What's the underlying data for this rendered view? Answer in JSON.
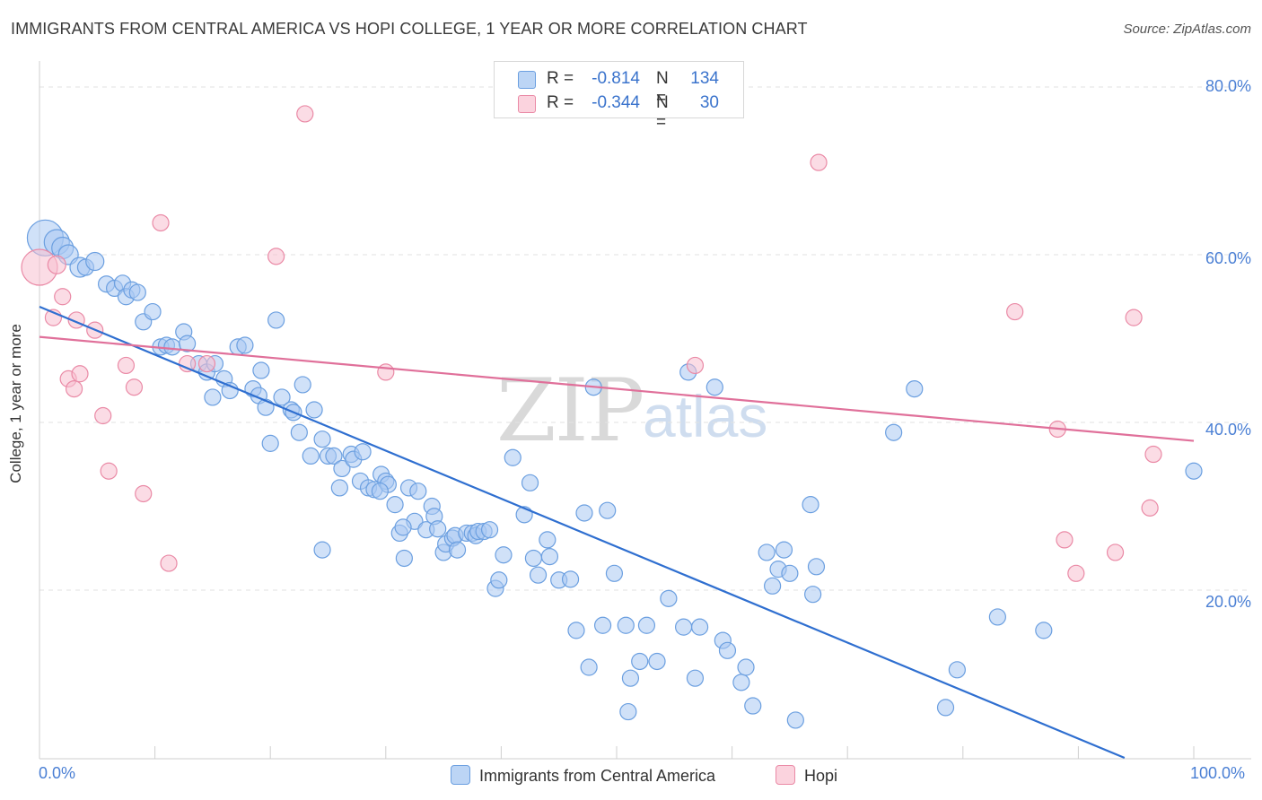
{
  "title": "IMMIGRANTS FROM CENTRAL AMERICA VS HOPI COLLEGE, 1 YEAR OR MORE CORRELATION CHART",
  "source": "Source: ZipAtlas.com",
  "watermark": {
    "zip": "ZIP",
    "atlas": "atlas"
  },
  "legend": {
    "rows": [
      {
        "r_label": "R =",
        "r_value": "-0.814",
        "n_label": "N =",
        "n_value": "134",
        "color": "#a9c8f2",
        "border": "#6b9fe0"
      },
      {
        "r_label": "R =",
        "r_value": "-0.344",
        "n_label": "N =",
        "n_value": "30",
        "color": "#f7c0cf",
        "border": "#ea8aa6"
      }
    ],
    "bottom": [
      {
        "label": "Immigrants from Central America",
        "color": "#bcd5f5",
        "border": "#6b9fe0"
      },
      {
        "label": "Hopi",
        "color": "#fbd3de",
        "border": "#ea8aa6"
      }
    ]
  },
  "chart_data": {
    "type": "scatter",
    "title": "IMMIGRANTS FROM CENTRAL AMERICA VS HOPI COLLEGE, 1 YEAR OR MORE CORRELATION CHART",
    "xlabel": "",
    "ylabel": "College, 1 year or more",
    "xlim": [
      0,
      100
    ],
    "ylim": [
      0,
      80
    ],
    "x_tick_labels": [
      "0.0%",
      "100.0%"
    ],
    "y_tick_labels": [
      "20.0%",
      "40.0%",
      "60.0%",
      "80.0%"
    ],
    "y_ticks": [
      20,
      40,
      60,
      80
    ],
    "grid": "horizontal dashed",
    "legend_position": "top-center",
    "series": [
      {
        "name": "Immigrants from Central America",
        "color": "#6b9fe0",
        "fill": "#a9c8f2",
        "trend": {
          "x": [
            0,
            94
          ],
          "y": [
            53.8,
            0
          ]
        },
        "points": [
          [
            0.5,
            62,
            20
          ],
          [
            1.5,
            61.5,
            14
          ],
          [
            2,
            60.8,
            12
          ],
          [
            2.5,
            60,
            11
          ],
          [
            3.5,
            58.5,
            11
          ],
          [
            4,
            58.5,
            9
          ],
          [
            4.8,
            59.2,
            10
          ],
          [
            5.8,
            56.5,
            9
          ],
          [
            6.5,
            56,
            9
          ],
          [
            7.2,
            56.6,
            9
          ],
          [
            7.5,
            55,
            9
          ],
          [
            8,
            55.8,
            9
          ],
          [
            8.5,
            55.5,
            9
          ],
          [
            9,
            52,
            9
          ],
          [
            9.8,
            53.2,
            9
          ],
          [
            10.5,
            49,
            9
          ],
          [
            11,
            49.2,
            9
          ],
          [
            11.5,
            49,
            9
          ],
          [
            12.5,
            50.8,
            9
          ],
          [
            12.8,
            49.4,
            9
          ],
          [
            13.8,
            47,
            9
          ],
          [
            14.5,
            46,
            9
          ],
          [
            15,
            43,
            9
          ],
          [
            15.2,
            47,
            9
          ],
          [
            16,
            45.2,
            9
          ],
          [
            16.5,
            43.8,
            9
          ],
          [
            17.2,
            49,
            9
          ],
          [
            17.8,
            49.2,
            9
          ],
          [
            18.5,
            44,
            9
          ],
          [
            19,
            43.2,
            9
          ],
          [
            19.2,
            46.2,
            9
          ],
          [
            19.6,
            41.8,
            9
          ],
          [
            20,
            37.5,
            9
          ],
          [
            20.5,
            52.2,
            9
          ],
          [
            21,
            43,
            9
          ],
          [
            21.8,
            41.5,
            9
          ],
          [
            22,
            41.2,
            9
          ],
          [
            22.5,
            38.8,
            9
          ],
          [
            22.8,
            44.5,
            9
          ],
          [
            23.5,
            36,
            9
          ],
          [
            23.8,
            41.5,
            9
          ],
          [
            24.5,
            38,
            9
          ],
          [
            25,
            36,
            9
          ],
          [
            25.5,
            36,
            9
          ],
          [
            26,
            32.2,
            9
          ],
          [
            26.2,
            34.5,
            9
          ],
          [
            27,
            36.2,
            9
          ],
          [
            27.2,
            35.6,
            9
          ],
          [
            27.8,
            33,
            9
          ],
          [
            28,
            36.5,
            9
          ],
          [
            28.5,
            32.2,
            9
          ],
          [
            29,
            32,
            9
          ],
          [
            29.6,
            33.8,
            9
          ],
          [
            30,
            33,
            9
          ],
          [
            30.2,
            32.6,
            9
          ],
          [
            30.8,
            30.2,
            9
          ],
          [
            31.2,
            26.8,
            9
          ],
          [
            31.6,
            23.8,
            9
          ],
          [
            32,
            32.2,
            9
          ],
          [
            32.5,
            28.2,
            9
          ],
          [
            32.8,
            31.8,
            9
          ],
          [
            33.5,
            27.2,
            9
          ],
          [
            34,
            30,
            9
          ],
          [
            34.2,
            28.8,
            9
          ],
          [
            34.5,
            27.3,
            9
          ],
          [
            35,
            24.5,
            9
          ],
          [
            35.2,
            25.5,
            9
          ],
          [
            35.8,
            26.2,
            9
          ],
          [
            36,
            26.5,
            9
          ],
          [
            36.2,
            24.8,
            9
          ],
          [
            37,
            26.8,
            9
          ],
          [
            37.5,
            26.8,
            9
          ],
          [
            37.8,
            26.5,
            9
          ],
          [
            38,
            27,
            9
          ],
          [
            38.5,
            27,
            9
          ],
          [
            39,
            27.2,
            9
          ],
          [
            39.5,
            20.2,
            9
          ],
          [
            39.8,
            21.2,
            9
          ],
          [
            40.2,
            24.2,
            9
          ],
          [
            41,
            35.8,
            9
          ],
          [
            42,
            29,
            9
          ],
          [
            42.5,
            32.8,
            9
          ],
          [
            42.8,
            23.8,
            9
          ],
          [
            43.2,
            21.8,
            9
          ],
          [
            44,
            26,
            9
          ],
          [
            44.2,
            24,
            9
          ],
          [
            45,
            21.2,
            9
          ],
          [
            46,
            21.3,
            9
          ],
          [
            46.5,
            15.2,
            9
          ],
          [
            47.2,
            29.2,
            9
          ],
          [
            47.6,
            10.8,
            9
          ],
          [
            48,
            44.2,
            9
          ],
          [
            48.8,
            15.8,
            9
          ],
          [
            49.2,
            29.5,
            9
          ],
          [
            49.8,
            22,
            9
          ],
          [
            50.8,
            15.8,
            9
          ],
          [
            51,
            5.5,
            9
          ],
          [
            51.2,
            9.5,
            9
          ],
          [
            52,
            11.5,
            9
          ],
          [
            52.6,
            15.8,
            9
          ],
          [
            53.5,
            11.5,
            9
          ],
          [
            54.5,
            19,
            9
          ],
          [
            55.8,
            15.6,
            9
          ],
          [
            56.2,
            46,
            9
          ],
          [
            56.8,
            9.5,
            9
          ],
          [
            57.2,
            15.6,
            9
          ],
          [
            58.5,
            44.2,
            9
          ],
          [
            59.2,
            14,
            9
          ],
          [
            59.6,
            12.8,
            9
          ],
          [
            60.8,
            9,
            9
          ],
          [
            61.2,
            10.8,
            9
          ],
          [
            61.8,
            6.2,
            9
          ],
          [
            63,
            24.5,
            9
          ],
          [
            63.5,
            20.5,
            9
          ],
          [
            64,
            22.5,
            9
          ],
          [
            64.5,
            24.8,
            9
          ],
          [
            65,
            22,
            9
          ],
          [
            65.5,
            4.5,
            9
          ],
          [
            66.8,
            30.2,
            9
          ],
          [
            67,
            19.5,
            9
          ],
          [
            67.3,
            22.8,
            9
          ],
          [
            74,
            38.8,
            9
          ],
          [
            75.8,
            44,
            9
          ],
          [
            78.5,
            6,
            9
          ],
          [
            79.5,
            10.5,
            9
          ],
          [
            83,
            16.8,
            9
          ],
          [
            87,
            15.2,
            9
          ],
          [
            100,
            34.2,
            9
          ],
          [
            24.5,
            24.8,
            9
          ],
          [
            29.5,
            31.8,
            9
          ],
          [
            31.5,
            27.5,
            9
          ]
        ]
      },
      {
        "name": "Hopi",
        "color": "#ea8aa6",
        "fill": "#f7c0cf",
        "trend": {
          "x": [
            0,
            100
          ],
          "y": [
            50.2,
            37.8
          ]
        },
        "points": [
          [
            0,
            58.5,
            20
          ],
          [
            1.2,
            52.5,
            9
          ],
          [
            1.5,
            58.8,
            10
          ],
          [
            2,
            55,
            9
          ],
          [
            2.5,
            45.2,
            9
          ],
          [
            3,
            44,
            9
          ],
          [
            3.2,
            52.2,
            9
          ],
          [
            3.5,
            45.8,
            9
          ],
          [
            4.8,
            51,
            9
          ],
          [
            5.5,
            40.8,
            9
          ],
          [
            6,
            34.2,
            9
          ],
          [
            7.5,
            46.8,
            9
          ],
          [
            8.2,
            44.2,
            9
          ],
          [
            9,
            31.5,
            9
          ],
          [
            10.5,
            63.8,
            9
          ],
          [
            11.2,
            23.2,
            9
          ],
          [
            12.8,
            47,
            9
          ],
          [
            14.5,
            47,
            9
          ],
          [
            20.5,
            59.8,
            9
          ],
          [
            23,
            76.8,
            9
          ],
          [
            30,
            46,
            9
          ],
          [
            56.8,
            46.8,
            9
          ],
          [
            67.5,
            71,
            9
          ],
          [
            84.5,
            53.2,
            9
          ],
          [
            88.2,
            39.2,
            9
          ],
          [
            88.8,
            26,
            9
          ],
          [
            89.8,
            22,
            9
          ],
          [
            93.2,
            24.5,
            9
          ],
          [
            94.8,
            52.5,
            9
          ],
          [
            96.2,
            29.8,
            9
          ],
          [
            96.5,
            36.2,
            9
          ]
        ]
      }
    ]
  }
}
